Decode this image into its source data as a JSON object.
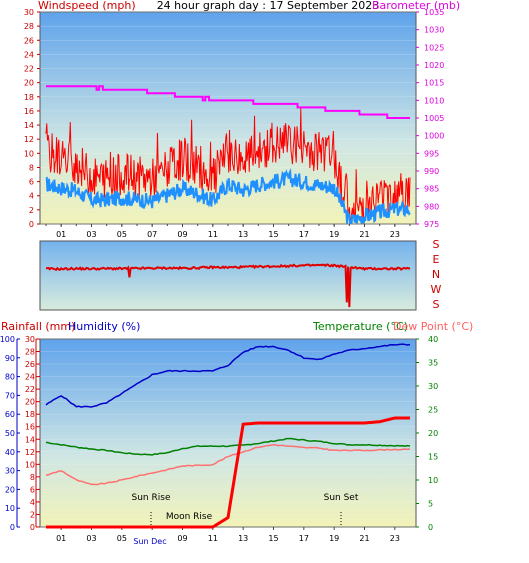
{
  "header": {
    "wind_axis_label": "Windspeed (mph)",
    "title": "24 hour graph day : 17 September 2023",
    "baro_axis_label": "Barometer (mb)"
  },
  "direction_labels": [
    "S",
    "E",
    "N",
    "W",
    "S"
  ],
  "lower_header": {
    "rain_label": "Rainfall (mm)",
    "humidity_label": "Humidity (%)",
    "temp_label": "Temperature (°C)",
    "dew_label": "Dew Point (°C)"
  },
  "events": {
    "sun_rise": "Sun Rise",
    "moon_rise": "Moon Rise",
    "sun_set": "Sun Set",
    "sun_dec": "Sun Dec"
  },
  "colors": {
    "wind_gust": "#ff0000",
    "wind_avg": "#1e90ff",
    "barometer": "#ff00ff",
    "direction": "#ff0000",
    "humidity": "#0000c8",
    "temperature": "#008000",
    "dew_point": "#ff7070",
    "rainfall": "#ff0000"
  },
  "chart_data": [
    {
      "type": "line",
      "title": "24 hour graph day : 17 September 2023",
      "x_ticks": [
        "01",
        "03",
        "05",
        "07",
        "09",
        "11",
        "13",
        "15",
        "17",
        "19",
        "21",
        "23"
      ],
      "y_left": {
        "label": "Windspeed (mph)",
        "ticks": [
          0,
          2,
          4,
          6,
          8,
          10,
          12,
          14,
          16,
          18,
          20,
          22,
          24,
          26,
          28,
          30
        ],
        "ylim": [
          0,
          30
        ]
      },
      "y_right": {
        "label": "Barometer (mb)",
        "ticks": [
          975,
          980,
          985,
          990,
          995,
          1000,
          1005,
          1010,
          1015,
          1020,
          1025,
          1030,
          1035
        ],
        "ylim": [
          975,
          1035
        ]
      },
      "series": [
        {
          "axis": "left",
          "x": [
            0,
            1,
            2,
            3,
            4,
            5,
            6,
            7,
            8,
            9,
            10,
            11,
            12,
            13,
            14,
            15,
            16,
            17,
            18,
            19,
            20,
            21,
            22,
            23,
            24
          ],
          "values": [
            5.6,
            5.1,
            4.7,
            3.4,
            3.4,
            3.7,
            3.5,
            3.2,
            4.1,
            5.0,
            4.3,
            3.3,
            5.6,
            4.8,
            5.6,
            6.0,
            6.4,
            6.0,
            5.5,
            5.2,
            0.4,
            1.1,
            1.6,
            2.1,
            2.1
          ]
        },
        {
          "axis": "left",
          "x": [
            0,
            1,
            2,
            3,
            4,
            5,
            6,
            7,
            8,
            9,
            10,
            11,
            12,
            13,
            14,
            15,
            16,
            17,
            18,
            19,
            20,
            21,
            22,
            23,
            24
          ],
          "values": [
            9.3,
            8.5,
            7.8,
            5.6,
            5.6,
            6.2,
            5.8,
            5.4,
            6.8,
            8.4,
            7.2,
            5.4,
            9.3,
            8.0,
            9.3,
            10.0,
            10.6,
            10.0,
            9.2,
            8.6,
            0.7,
            1.8,
            2.7,
            3.5,
            3.5
          ]
        },
        {
          "axis": "right",
          "x": [
            0,
            1,
            2,
            3,
            4,
            5,
            6,
            7,
            8,
            9,
            10,
            11,
            12,
            13,
            14,
            15,
            16,
            17,
            18,
            19,
            20,
            21,
            22,
            23,
            24
          ],
          "values": [
            1014,
            1014,
            1014,
            1014,
            1013,
            1013,
            1013,
            1012,
            1012,
            1011,
            1011,
            1010,
            1010,
            1010,
            1009,
            1009,
            1009,
            1008,
            1008,
            1007,
            1007,
            1006,
            1006,
            1005,
            1005
          ]
        }
      ]
    },
    {
      "type": "line",
      "x": [
        0,
        1,
        2,
        3,
        4,
        5,
        6,
        7,
        8,
        9,
        10,
        11,
        12,
        13,
        14,
        15,
        16,
        17,
        18,
        19,
        20,
        21,
        22,
        23,
        24
      ],
      "series": [
        {
          "values": [
            215,
            214,
            216,
            215,
            216,
            216,
            217,
            218,
            219,
            218,
            220,
            223,
            222,
            224,
            226,
            228,
            230,
            232,
            234,
            232,
            224,
            215,
            216,
            215,
            216
          ]
        }
      ]
    },
    {
      "type": "line",
      "x_ticks": [
        "01",
        "03",
        "05",
        "07",
        "09",
        "11",
        "13",
        "15",
        "17",
        "19",
        "21",
        "23"
      ],
      "y_humidity": {
        "label": "Humidity (%)",
        "ticks": [
          0,
          10,
          20,
          30,
          40,
          50,
          60,
          70,
          80,
          90,
          100
        ],
        "ylim": [
          0,
          100
        ]
      },
      "y_rain": {
        "label": "Rainfall (mm)",
        "ticks": [
          0,
          2,
          4,
          6,
          8,
          10,
          12,
          14,
          16,
          18,
          20,
          22,
          24,
          26,
          28,
          30
        ],
        "ylim": [
          0,
          30
        ]
      },
      "y_temp": {
        "label": "Temperature (°C)",
        "ticks": [
          0,
          5,
          10,
          15,
          20,
          25,
          30,
          35,
          40
        ],
        "ylim": [
          0,
          40
        ]
      },
      "series": [
        {
          "axis": "humidity",
          "x": [
            0,
            1,
            2,
            3,
            4,
            5,
            6,
            7,
            8,
            9,
            10,
            11,
            12,
            13,
            14,
            15,
            16,
            17,
            18,
            19,
            20,
            21,
            22,
            23,
            24
          ],
          "values": [
            65,
            70,
            64,
            64,
            66,
            71,
            76,
            81,
            83,
            83,
            83,
            83,
            86,
            93,
            96,
            96,
            94,
            90,
            89,
            92,
            94,
            95,
            96,
            97,
            97
          ]
        },
        {
          "axis": "rain",
          "x": [
            0,
            1,
            2,
            3,
            4,
            5,
            6,
            7,
            8,
            9,
            10,
            11,
            12,
            13,
            14,
            15,
            16,
            17,
            18,
            19,
            20,
            21,
            22,
            23,
            24
          ],
          "values": [
            0,
            0,
            0,
            0,
            0,
            0,
            0,
            0,
            0,
            0,
            0,
            0,
            1.5,
            16.4,
            16.6,
            16.6,
            16.6,
            16.6,
            16.6,
            16.6,
            16.6,
            16.6,
            16.8,
            17.4,
            17.4
          ]
        },
        {
          "axis": "temp",
          "x": [
            0,
            1,
            2,
            3,
            4,
            5,
            6,
            7,
            8,
            9,
            10,
            11,
            12,
            13,
            14,
            15,
            16,
            17,
            18,
            19,
            20,
            21,
            22,
            23,
            24
          ],
          "values": [
            18,
            17.5,
            17,
            16.6,
            16.3,
            15.8,
            15.5,
            15.4,
            15.8,
            16.7,
            17.2,
            17.2,
            17.2,
            17.4,
            17.8,
            18.3,
            18.8,
            18.5,
            18.2,
            17.8,
            17.5,
            17.5,
            17.4,
            17.3,
            17.2
          ]
        },
        {
          "axis": "temp",
          "x": [
            0,
            1,
            2,
            3,
            4,
            5,
            6,
            7,
            8,
            9,
            10,
            11,
            12,
            13,
            14,
            15,
            16,
            17,
            18,
            19,
            20,
            21,
            22,
            23,
            24
          ],
          "values": [
            11,
            12,
            10,
            9,
            9.3,
            10,
            10.8,
            11.5,
            12.2,
            13,
            13.1,
            13.3,
            15,
            16,
            17,
            17.5,
            17.2,
            16.9,
            16.8,
            16.3,
            16.3,
            16.3,
            16.4,
            16.5,
            16.5
          ]
        }
      ]
    }
  ]
}
